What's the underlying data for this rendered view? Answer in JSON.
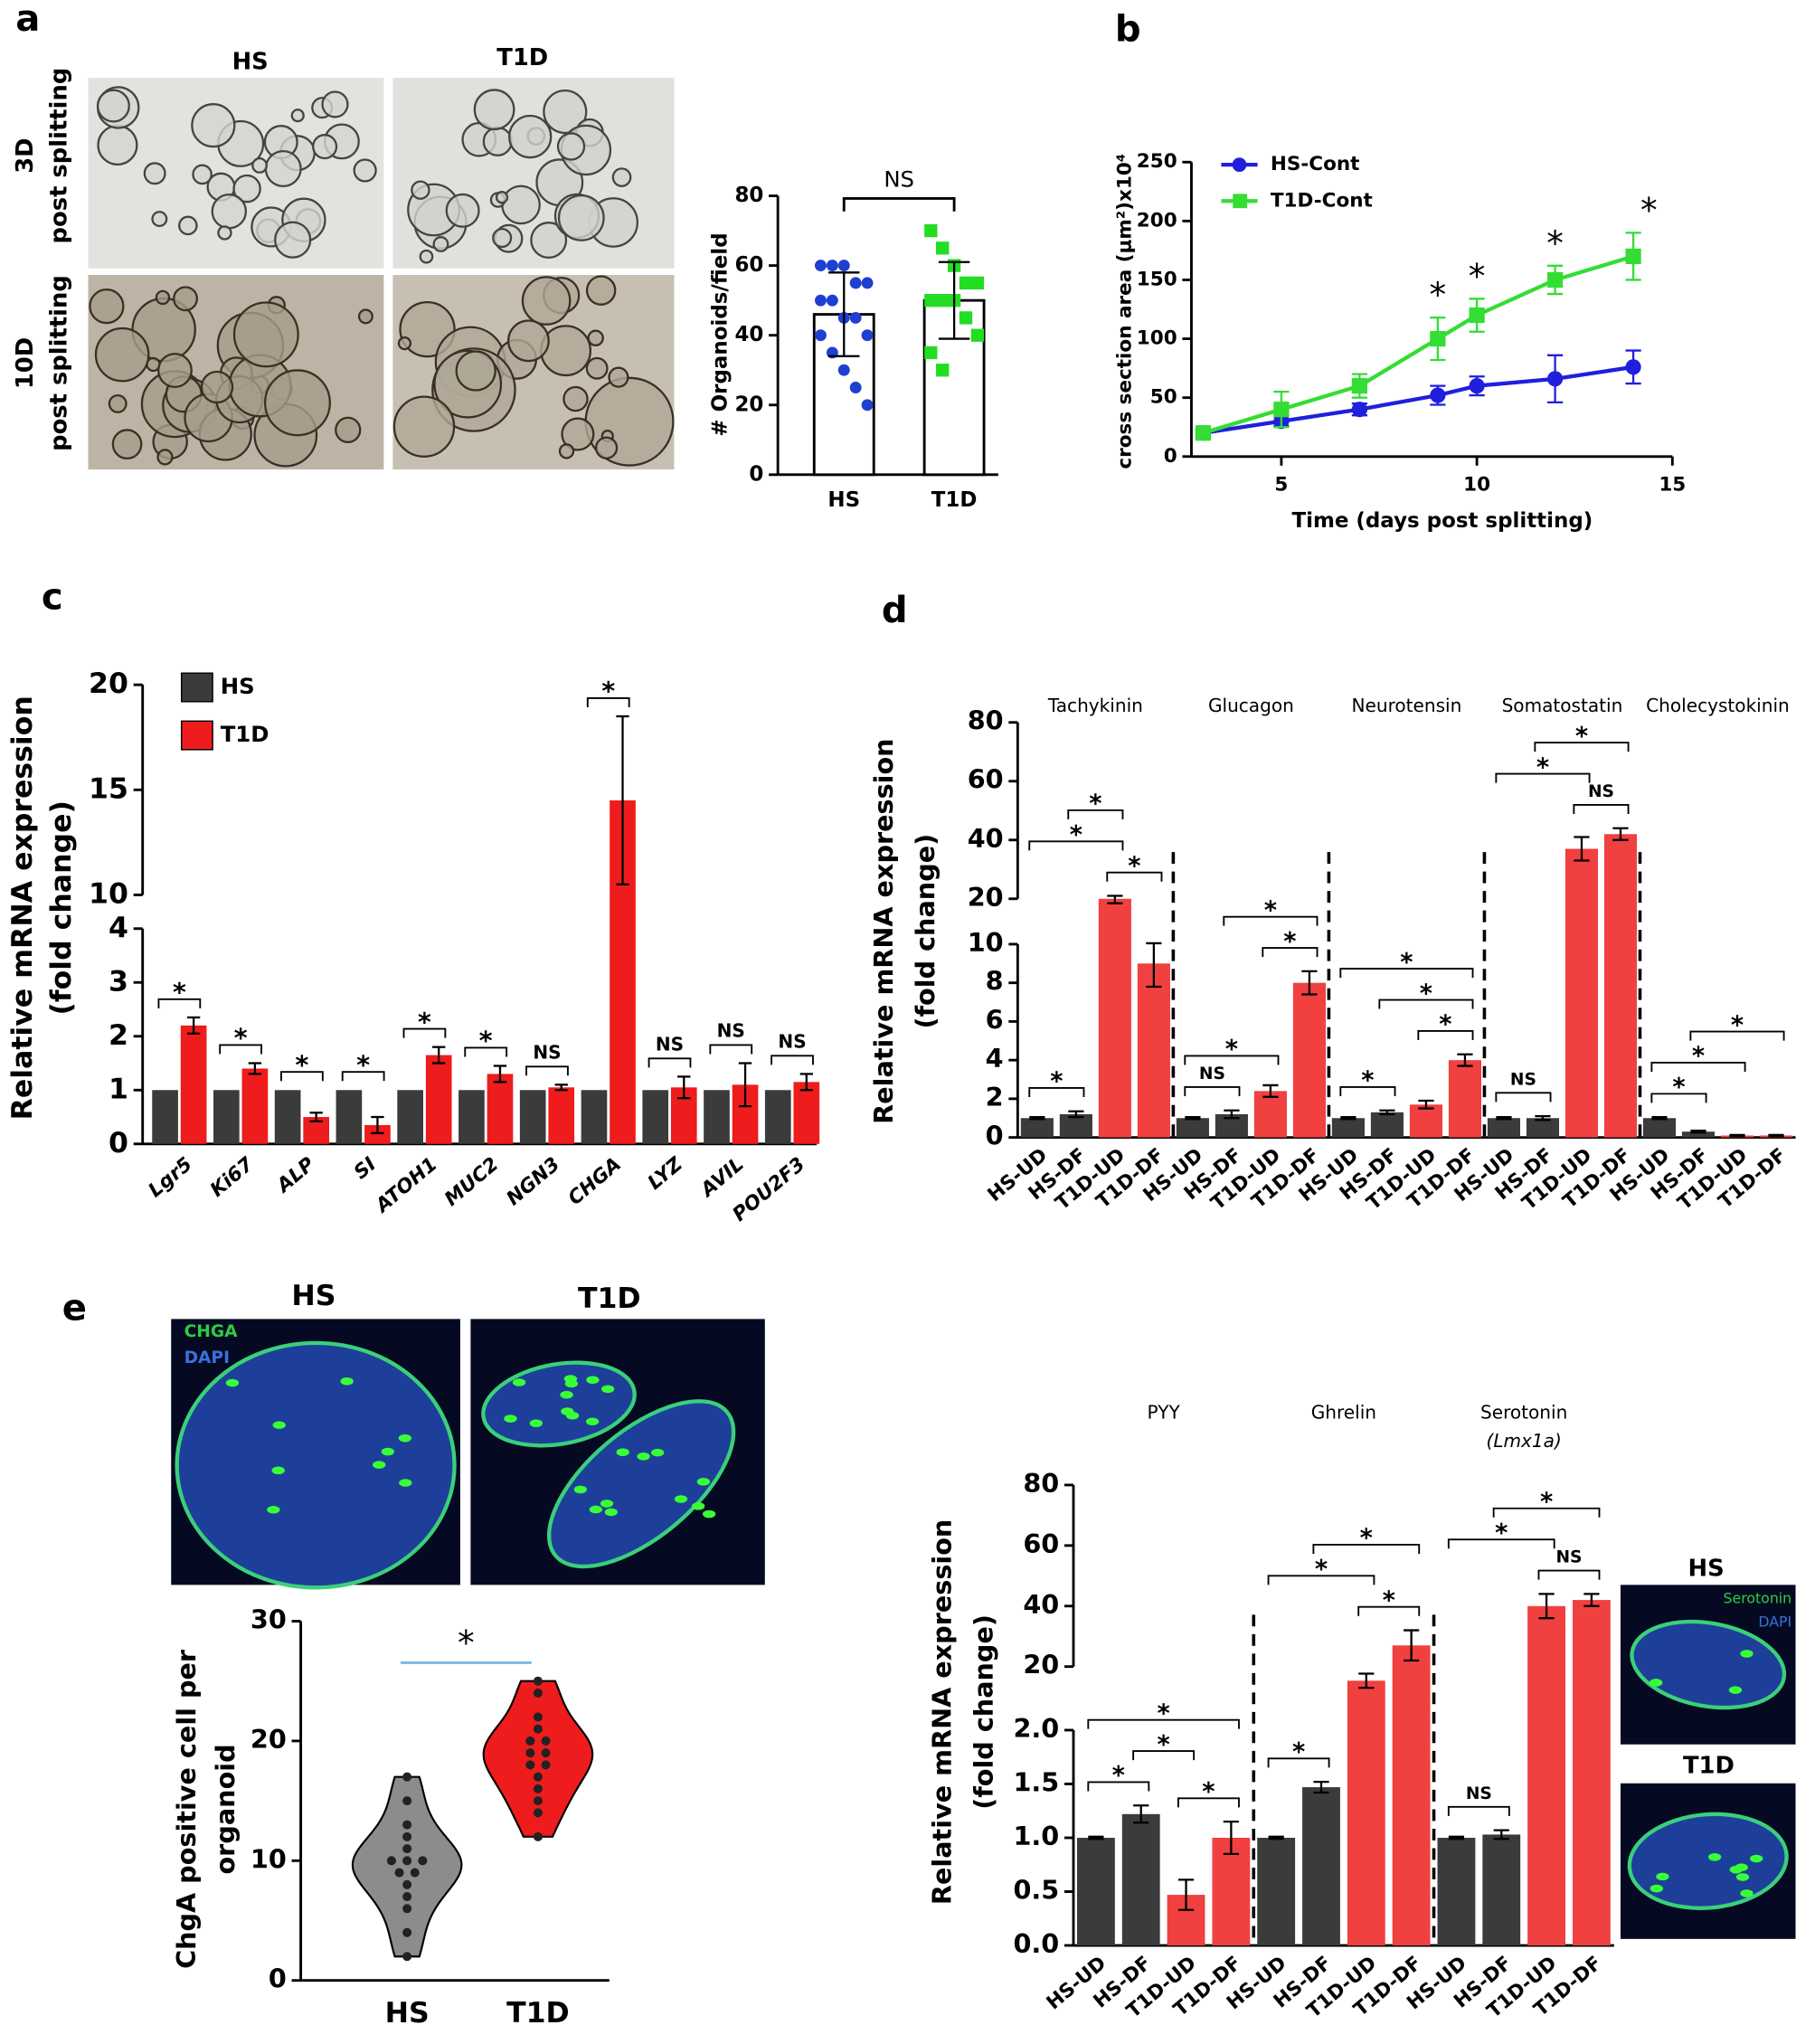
{
  "panels": [
    "a",
    "b",
    "c",
    "d",
    "e"
  ],
  "images": {
    "a_columns": [
      "HS",
      "T1D"
    ],
    "a_rows": [
      [
        "3D",
        "post splitting"
      ],
      [
        "10D",
        "post splitting"
      ]
    ],
    "e_columns": [
      "HS",
      "T1D"
    ],
    "e_stains": [
      "CHGA",
      "DAPI"
    ],
    "inset_rows": [
      "HS",
      "T1D"
    ],
    "inset_stains": [
      "Serotonin",
      "DAPI"
    ]
  },
  "chart_data": [
    {
      "type": "bar",
      "categories": [
        "HS",
        "T1D"
      ],
      "values": [
        46,
        50
      ],
      "errors": [
        12,
        11
      ],
      "points": [
        [
          60,
          60,
          60,
          55,
          55,
          50,
          50,
          45,
          45,
          40,
          40,
          35,
          30,
          25,
          20
        ],
        [
          70,
          65,
          60,
          55,
          55,
          50,
          50,
          50,
          45,
          40,
          35,
          30
        ]
      ],
      "colors": [
        "#1f3fd1",
        "#22dd22"
      ],
      "ylabel": "# Organoids/field",
      "ylim": [
        0,
        80
      ],
      "yticks": [
        0,
        20,
        40,
        60,
        80
      ],
      "annotation": "NS"
    },
    {
      "type": "line",
      "x": [
        3,
        5,
        7,
        9,
        10,
        12,
        14
      ],
      "series": [
        {
          "name": "HS-Cont",
          "color": "#1f1fdd",
          "values": [
            20,
            30,
            40,
            52,
            60,
            66,
            76
          ],
          "errors": [
            3,
            4,
            5,
            8,
            8,
            20,
            14
          ]
        },
        {
          "name": "T1D-Cont",
          "color": "#33dd33",
          "values": [
            20,
            40,
            60,
            100,
            120,
            150,
            170
          ],
          "errors": [
            3,
            15,
            10,
            18,
            14,
            12,
            20
          ]
        }
      ],
      "annotations": [
        {
          "x": 9,
          "label": "*"
        },
        {
          "x": 10,
          "label": "*"
        },
        {
          "x": 12,
          "label": "*"
        },
        {
          "x": 14,
          "label": "*"
        }
      ],
      "xlabel": "Time (days post splitting)",
      "ylabel": "cross section area (μm²)x10⁴",
      "xlim": [
        2.7,
        15
      ],
      "xticks": [
        5,
        10,
        15
      ],
      "ylim": [
        0,
        250
      ],
      "yticks": [
        0,
        50,
        100,
        150,
        200,
        250
      ]
    },
    {
      "type": "broken-bar",
      "categories": [
        "Lgr5",
        "Ki67",
        "ALP",
        "SI",
        "ATOH1",
        "MUC2",
        "NGN3",
        "CHGA",
        "LYZ",
        "AVIL",
        "POU2F3"
      ],
      "series": [
        {
          "name": "HS",
          "color": "#3b3b3b",
          "values": [
            1,
            1,
            1,
            1,
            1,
            1,
            1,
            1,
            1,
            1,
            1
          ]
        },
        {
          "name": "T1D",
          "color": "#ee1c1c",
          "values": [
            2.2,
            1.4,
            0.5,
            0.35,
            1.65,
            1.3,
            1.05,
            14.5,
            1.05,
            1.1,
            1.15
          ],
          "errors": [
            0.15,
            0.1,
            0.08,
            0.15,
            0.15,
            0.15,
            0.05,
            4,
            0.2,
            0.4,
            0.15
          ]
        }
      ],
      "annotations": [
        "*",
        "*",
        "*",
        "*",
        "*",
        "*",
        "NS",
        "*",
        "NS",
        "NS",
        "NS"
      ],
      "ylabel": [
        "Relative mRNA expression",
        "(fold change)"
      ],
      "ylim": [
        0,
        20
      ],
      "ybreak": [
        4,
        10
      ],
      "yticks": [
        0,
        1,
        2,
        3,
        4,
        10,
        15,
        20
      ]
    },
    {
      "type": "grouped-bar",
      "categories": [
        "HS-UD",
        "HS-DF",
        "T1D-UD",
        "T1D-DF"
      ],
      "colors": [
        "#3b3b3b",
        "#3b3b3b",
        "#f04040",
        "#f04040"
      ],
      "groups": [
        {
          "name": "Tachykinin",
          "values": [
            1,
            1.2,
            20,
            9
          ],
          "errors": [
            0.05,
            0.15,
            1,
            1.2
          ],
          "brackets": [
            {
              "from": "HS-UD",
              "to": "HS-DF",
              "label": "*"
            },
            {
              "from": "T1D-UD",
              "to": "T1D-DF",
              "label": "*"
            },
            {
              "from": "HS-UD",
              "to": "T1D-UD",
              "label": "*"
            },
            {
              "from": "HS-DF",
              "to": "T1D-UD",
              "label": "*"
            }
          ]
        },
        {
          "name": "Glucagon",
          "values": [
            1,
            1.2,
            2.4,
            8
          ],
          "errors": [
            0.05,
            0.2,
            0.3,
            0.6
          ],
          "brackets": [
            {
              "from": "HS-UD",
              "to": "HS-DF",
              "label": "NS"
            },
            {
              "from": "HS-UD",
              "to": "T1D-UD",
              "label": "*"
            },
            {
              "from": "T1D-UD",
              "to": "T1D-DF",
              "label": "*"
            },
            {
              "from": "HS-DF",
              "to": "T1D-DF",
              "label": "*"
            }
          ]
        },
        {
          "name": "Neurotensin",
          "values": [
            1,
            1.3,
            1.7,
            4
          ],
          "errors": [
            0.05,
            0.1,
            0.2,
            0.3
          ],
          "brackets": [
            {
              "from": "HS-UD",
              "to": "HS-DF",
              "label": "*"
            },
            {
              "from": "T1D-UD",
              "to": "T1D-DF",
              "label": "*"
            },
            {
              "from": "HS-DF",
              "to": "T1D-DF",
              "label": "*"
            },
            {
              "from": "HS-UD",
              "to": "T1D-DF",
              "label": "*"
            }
          ]
        },
        {
          "name": "Somatostatin",
          "values": [
            1,
            1,
            37,
            42
          ],
          "errors": [
            0.05,
            0.1,
            4,
            2
          ],
          "brackets": [
            {
              "from": "HS-UD",
              "to": "HS-DF",
              "label": "NS"
            },
            {
              "from": "T1D-UD",
              "to": "T1D-DF",
              "label": "NS"
            },
            {
              "from": "HS-UD",
              "to": "T1D-UD",
              "label": "*"
            },
            {
              "from": "HS-DF",
              "to": "T1D-DF",
              "label": "*"
            }
          ]
        },
        {
          "name": "Cholecystokinin",
          "values": [
            1,
            0.3,
            0.1,
            0.1
          ],
          "errors": [
            0.05,
            0.05,
            0.03,
            0.03
          ],
          "brackets": [
            {
              "from": "HS-UD",
              "to": "HS-DF",
              "label": "*"
            },
            {
              "from": "HS-UD",
              "to": "T1D-UD",
              "label": "*"
            },
            {
              "from": "HS-DF",
              "to": "T1D-DF",
              "label": "*"
            }
          ]
        }
      ],
      "ylabel": [
        "Relative mRNA expression",
        "(fold change)"
      ],
      "ylim": [
        0,
        80
      ],
      "ybreak": [
        10,
        20
      ],
      "yticks": [
        0,
        2,
        4,
        6,
        8,
        10,
        20,
        40,
        60,
        80
      ]
    },
    {
      "type": "grouped-bar",
      "categories": [
        "HS-UD",
        "HS-DF",
        "T1D-UD",
        "T1D-DF"
      ],
      "colors": [
        "#3b3b3b",
        "#3b3b3b",
        "#f04040",
        "#f04040"
      ],
      "groups": [
        {
          "name": "PYY",
          "values": [
            1,
            1.22,
            0.47,
            1.0
          ],
          "errors": [
            0.01,
            0.08,
            0.14,
            0.15
          ],
          "brackets": [
            {
              "from": "HS-UD",
              "to": "HS-DF",
              "label": "*"
            },
            {
              "from": "T1D-UD",
              "to": "T1D-DF",
              "label": "*"
            },
            {
              "from": "HS-DF",
              "to": "T1D-UD",
              "label": "*"
            },
            {
              "from": "HS-UD",
              "to": "T1D-DF",
              "label": "*"
            }
          ]
        },
        {
          "name": "Ghrelin",
          "values": [
            1,
            1.47,
            16,
            27
          ],
          "errors": [
            0.01,
            0.05,
            2,
            5
          ],
          "brackets": [
            {
              "from": "HS-UD",
              "to": "HS-DF",
              "label": "*"
            },
            {
              "from": "T1D-UD",
              "to": "T1D-DF",
              "label": "*"
            },
            {
              "from": "HS-UD",
              "to": "T1D-UD",
              "label": "*"
            },
            {
              "from": "HS-DF",
              "to": "T1D-DF",
              "label": "*"
            }
          ]
        },
        {
          "name": "Serotonin",
          "subname": "(Lmx1a)",
          "values": [
            1,
            1.03,
            40,
            42
          ],
          "errors": [
            0.01,
            0.04,
            4,
            2
          ],
          "brackets": [
            {
              "from": "HS-UD",
              "to": "HS-DF",
              "label": "NS"
            },
            {
              "from": "T1D-UD",
              "to": "T1D-DF",
              "label": "NS"
            },
            {
              "from": "HS-UD",
              "to": "T1D-UD",
              "label": "*"
            },
            {
              "from": "HS-DF",
              "to": "T1D-DF",
              "label": "*"
            }
          ]
        }
      ],
      "ylabel": [
        "Relative mRNA expression",
        "(fold change)"
      ],
      "ylim": [
        0,
        80
      ],
      "ybreak": [
        2,
        20
      ],
      "yticks": [
        {
          "value": 0,
          "label": "0.0"
        },
        0.5,
        {
          "value": 1,
          "label": "1.0"
        },
        1.5,
        {
          "value": 2,
          "label": "2.0"
        },
        20,
        40,
        60,
        80
      ]
    },
    {
      "type": "violin",
      "categories": [
        "HS",
        "T1D"
      ],
      "points": [
        [
          2,
          4,
          6,
          7,
          8,
          9,
          9,
          10,
          10,
          10,
          11,
          12,
          13,
          15,
          17
        ],
        [
          12,
          14,
          15,
          16,
          17,
          18,
          18,
          19,
          19,
          20,
          20,
          21,
          22,
          24,
          25
        ]
      ],
      "colors": [
        "#8c8c8c",
        "#ee1c1c"
      ],
      "ylabel": [
        "ChgA positive cell per",
        "organoid"
      ],
      "ylim": [
        0,
        30
      ],
      "yticks": [
        0,
        10,
        20,
        30
      ],
      "annotation": "*"
    }
  ]
}
